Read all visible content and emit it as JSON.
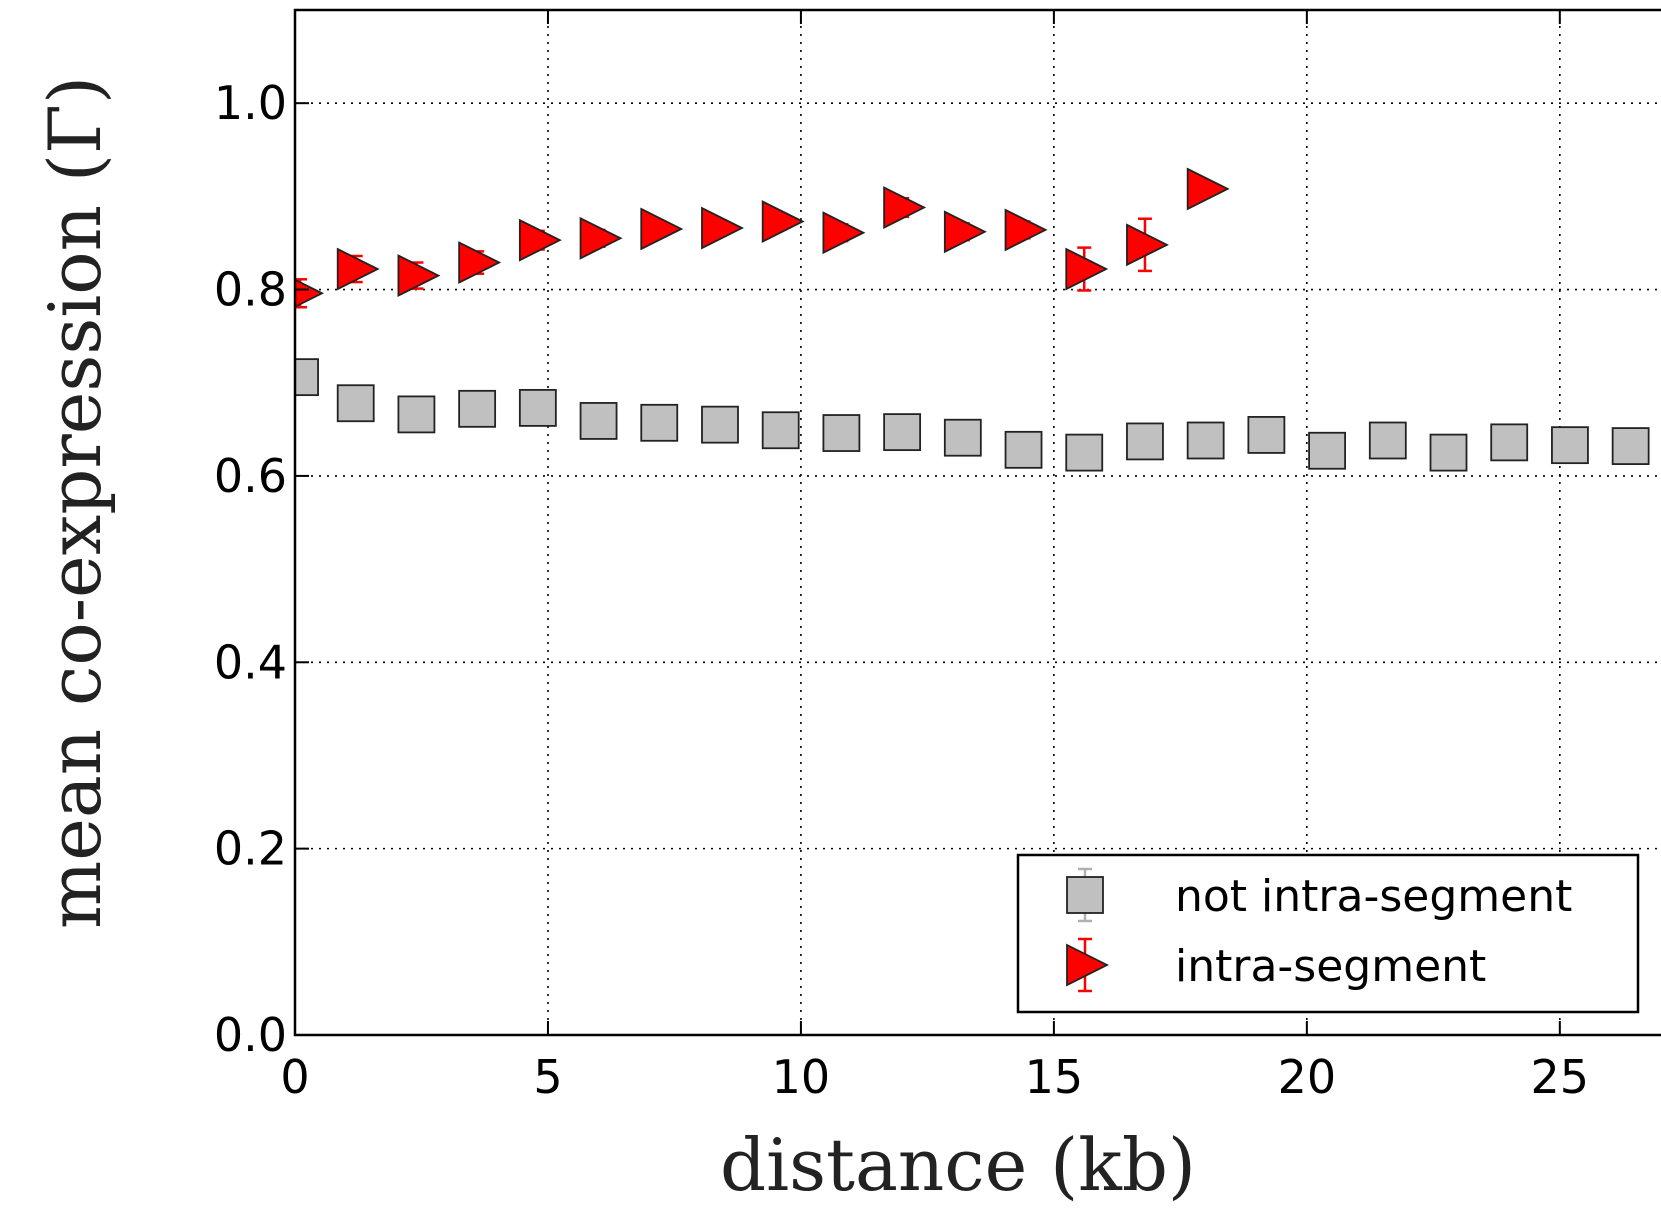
{
  "chart_data": {
    "type": "scatter",
    "xlabel": "distance (kb)",
    "ylabel": "mean co-expression (Γ)",
    "xlim": [
      0,
      27
    ],
    "ylim": [
      0,
      1.1
    ],
    "xticks": [
      0,
      5,
      10,
      15,
      20,
      25
    ],
    "yticks": [
      0.0,
      0.2,
      0.4,
      0.6,
      0.8,
      1.0
    ],
    "xtick_labels": [
      "0",
      "5",
      "10",
      "15",
      "20",
      "25"
    ],
    "ytick_labels": [
      "0.0",
      "0.2",
      "0.4",
      "0.6",
      "0.8",
      "1.0"
    ],
    "grid": true,
    "legend_position": "bottom-right",
    "series": [
      {
        "name": "not intra-segment",
        "marker": "square",
        "color": "#c0c0c0",
        "error_color": "#b0b0b0",
        "x": [
          0.1,
          1.2,
          2.4,
          3.6,
          4.8,
          6.0,
          7.2,
          8.4,
          9.6,
          10.8,
          12.0,
          13.2,
          14.4,
          15.6,
          16.8,
          18.0,
          19.2,
          20.4,
          21.6,
          22.8,
          24.0,
          25.2,
          26.4
        ],
        "values": [
          0.706,
          0.678,
          0.666,
          0.672,
          0.673,
          0.659,
          0.657,
          0.655,
          0.649,
          0.646,
          0.647,
          0.641,
          0.628,
          0.625,
          0.637,
          0.638,
          0.644,
          0.627,
          0.638,
          0.625,
          0.636,
          0.633,
          0.632
        ],
        "errors": [
          0.004,
          0.003,
          0.003,
          0.003,
          0.003,
          0.003,
          0.003,
          0.003,
          0.003,
          0.003,
          0.003,
          0.003,
          0.003,
          0.003,
          0.003,
          0.003,
          0.003,
          0.003,
          0.003,
          0.003,
          0.003,
          0.003,
          0.003
        ]
      },
      {
        "name": "intra-segment",
        "marker": "triangle-right",
        "color": "#ff0000",
        "error_color": "#ff0000",
        "x": [
          0.1,
          1.2,
          2.4,
          3.6,
          4.8,
          6.0,
          7.2,
          8.4,
          9.6,
          10.8,
          12.0,
          13.2,
          14.4,
          15.6,
          16.8,
          18.0
        ],
        "values": [
          0.796,
          0.822,
          0.815,
          0.829,
          0.853,
          0.855,
          0.865,
          0.866,
          0.873,
          0.861,
          0.888,
          0.862,
          0.864,
          0.822,
          0.848,
          0.908
        ],
        "errors": [
          0.015,
          0.014,
          0.014,
          0.012,
          0.01,
          0.009,
          0.008,
          0.008,
          0.008,
          0.009,
          0.01,
          0.009,
          0.009,
          0.023,
          0.028,
          0.0
        ]
      }
    ]
  }
}
